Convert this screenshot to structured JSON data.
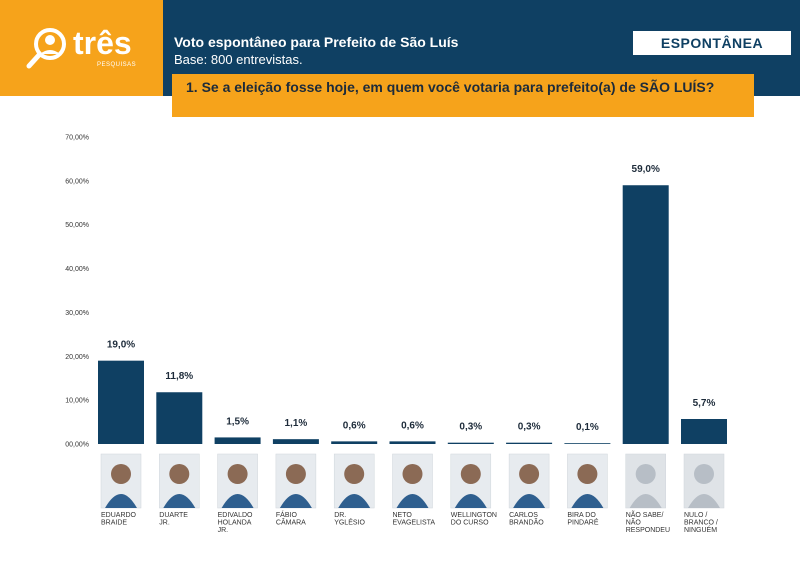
{
  "header": {
    "logo_text": "três",
    "logo_sub": "PESQUISAS",
    "title": "Voto espontâneo para Prefeito de São Luís",
    "subtitle": "Base: 800 entrevistas.",
    "badge": "ESPONTÂNEA",
    "question": "1. Se a eleição fosse hoje, em quem você votaria para prefeito(a) de SÃO LUÍS?"
  },
  "colors": {
    "orange": "#f6a31b",
    "navy": "#0f4063",
    "bar": "#0f4063"
  },
  "chart_data": {
    "type": "bar",
    "categories": [
      [
        "EDUARDO",
        "BRAIDE"
      ],
      [
        "DUARTE",
        "JR."
      ],
      [
        "EDIVALDO",
        "HOLANDA",
        "JR."
      ],
      [
        "FÁBIO",
        "CÂMARA"
      ],
      [
        "DR.",
        "YGLÉSIO"
      ],
      [
        "NETO",
        "EVAGELISTA"
      ],
      [
        "WELLINGTON",
        "DO CURSO"
      ],
      [
        "CARLOS",
        "BRANDÃO"
      ],
      [
        "BIRA DO",
        "PINDARÉ"
      ],
      [
        "NÃO SABE/",
        "NÃO",
        "RESPONDEU"
      ],
      [
        "NULO /",
        "BRANCO /",
        "NINGUÉM"
      ]
    ],
    "values": [
      19.0,
      11.8,
      1.5,
      1.1,
      0.6,
      0.6,
      0.3,
      0.3,
      0.1,
      59.0,
      5.7
    ],
    "value_labels": [
      "19,0%",
      "11,8%",
      "1,5%",
      "1,1%",
      "0,6%",
      "0,6%",
      "0,3%",
      "0,3%",
      "0,1%",
      "59,0%",
      "5,7%"
    ],
    "yticks": [
      "00,00%",
      "10,00%",
      "20,00%",
      "30,00%",
      "40,00%",
      "50,00%",
      "60,00%",
      "70,00%"
    ],
    "ylim": [
      0,
      70
    ],
    "grid": false
  }
}
